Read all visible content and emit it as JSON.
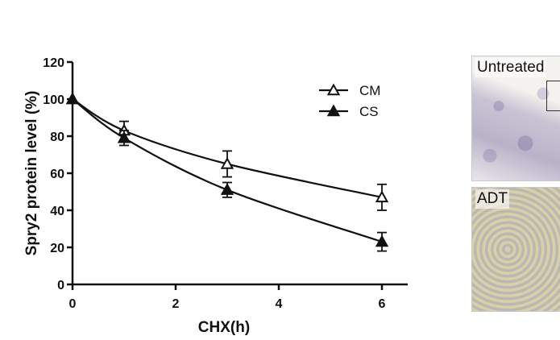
{
  "chart_data": {
    "type": "line",
    "title": "",
    "xlabel": "CHX(h)",
    "ylabel": "Spry2 protein level (%)",
    "xlim": [
      0,
      6.5
    ],
    "ylim": [
      0,
      120
    ],
    "xticks": [
      0,
      2,
      4,
      6
    ],
    "yticks": [
      0,
      20,
      40,
      60,
      80,
      100,
      120
    ],
    "grid": false,
    "legend_position": "top-right",
    "series": [
      {
        "name": "CM",
        "marker": "open-triangle",
        "x": [
          0,
          1,
          3,
          6
        ],
        "y": [
          100,
          83,
          65,
          47
        ],
        "error": [
          0,
          5,
          7,
          7
        ]
      },
      {
        "name": "CS",
        "marker": "filled-triangle",
        "x": [
          0,
          1,
          3,
          6
        ],
        "y": [
          100,
          79,
          51,
          23
        ],
        "error": [
          0,
          4,
          4,
          5
        ]
      }
    ]
  },
  "panels": [
    {
      "label": "Untreated"
    },
    {
      "label": "ADT"
    }
  ]
}
